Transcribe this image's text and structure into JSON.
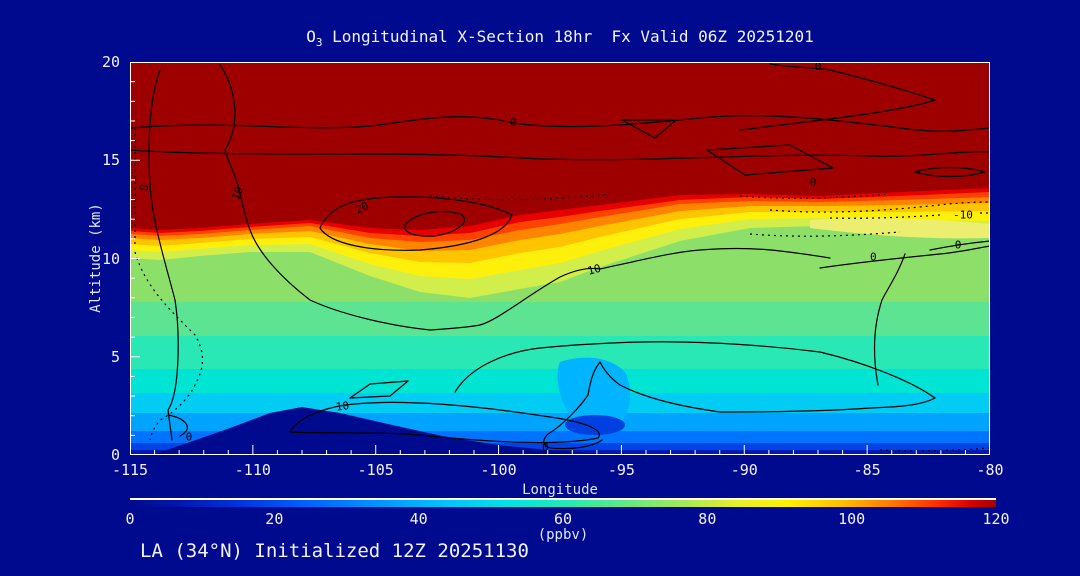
{
  "title": {
    "prefix": "O",
    "subscript": "3",
    "rest": " Longitudinal X-Section 18hr  Fx Valid 06Z 20251201"
  },
  "footer": "LA (34°N) Initialized 12Z 20251130",
  "chart_data": {
    "type": "heatmap",
    "title": "O3 Longitudinal X-Section 18hr Fx Valid 06Z 20251201",
    "xlabel": "Longitude",
    "ylabel": "Altitude (km)",
    "xlim": [
      -115,
      -80
    ],
    "ylim": [
      0,
      20
    ],
    "x_ticks": [
      -115,
      -110,
      -105,
      -100,
      -95,
      -90,
      -85,
      -80
    ],
    "y_ticks": [
      0,
      5,
      10,
      15,
      20
    ],
    "x_minor_step": 1,
    "y_minor_step": 1,
    "grid": false,
    "colorbar": {
      "label": "(ppbv)",
      "min": 0,
      "max": 120,
      "ticks": [
        0,
        20,
        40,
        60,
        80,
        100,
        120
      ],
      "stops": [
        [
          0,
          "#000a8e"
        ],
        [
          5,
          "#0014a8"
        ],
        [
          12,
          "#0030d8"
        ],
        [
          20,
          "#0060ff"
        ],
        [
          28,
          "#0090ff"
        ],
        [
          36,
          "#00c0ff"
        ],
        [
          43,
          "#00e0e8"
        ],
        [
          50,
          "#20e8b8"
        ],
        [
          57,
          "#60e888"
        ],
        [
          64,
          "#a8e858"
        ],
        [
          70,
          "#e8f028"
        ],
        [
          76,
          "#fff000"
        ],
        [
          82,
          "#ffc000"
        ],
        [
          88,
          "#ff7800"
        ],
        [
          93,
          "#ff3000"
        ],
        [
          97,
          "#d80000"
        ],
        [
          100,
          "#a00000"
        ]
      ]
    },
    "contour_labels": [
      {
        "v": "0",
        "lon": -114.4,
        "km": 13.6,
        "rot": -80
      },
      {
        "v": "10",
        "lon": -110.6,
        "km": 13.3,
        "rot": -70
      },
      {
        "v": "20",
        "lon": -105.55,
        "km": 12.55,
        "rot": -25
      },
      {
        "v": "0",
        "lon": -99.4,
        "km": 16.9,
        "rot": 0
      },
      {
        "v": "0",
        "lon": -87.0,
        "km": 19.75,
        "rot": 0
      },
      {
        "v": "0",
        "lon": -87.2,
        "km": 13.85,
        "rot": 0
      },
      {
        "v": "10",
        "lon": -96.1,
        "km": 9.4,
        "rot": -15
      },
      {
        "v": "-10",
        "lon": -81.1,
        "km": 12.2,
        "rot": 0
      },
      {
        "v": "0",
        "lon": -84.75,
        "km": 10.05,
        "rot": 0
      },
      {
        "v": "0",
        "lon": -81.3,
        "km": 10.65,
        "rot": 0
      },
      {
        "v": "10",
        "lon": -106.35,
        "km": 2.45,
        "rot": -8
      },
      {
        "v": "0",
        "lon": -98.1,
        "km": 0.35,
        "rot": 0
      },
      {
        "v": "0",
        "lon": -112.6,
        "km": 0.9,
        "rot": 0
      }
    ],
    "features": [
      "Filled contours show O3 concentration in ppbv on 0-120 rainbow scale",
      "Stratospheric O3 >120 ppbv (dark red) above ~13 km across all longitudes",
      "Enhanced O3 tongue (~80-110 ppbv, red/orange) near lon -106 to -102 at 10-12 km",
      "Pale yellow patch with dotted negative contours near lon -83 to -80 at ~12 km",
      "Low O3 (10-30 ppbv, blue) in boundary layer below ~2 km",
      "Terrain silhouette (background navy) peaking ~2.3 km near lon -108",
      "Overlaid black line contours labeled -10, 0, 10, 20; dotted lines are negative values"
    ],
    "colors": {
      "background": "#000a8e",
      "stratosphere_fill": "#9e0000",
      "text": "#f2f2f4",
      "axis": "#ffffff",
      "contour_line": "#000000"
    }
  }
}
